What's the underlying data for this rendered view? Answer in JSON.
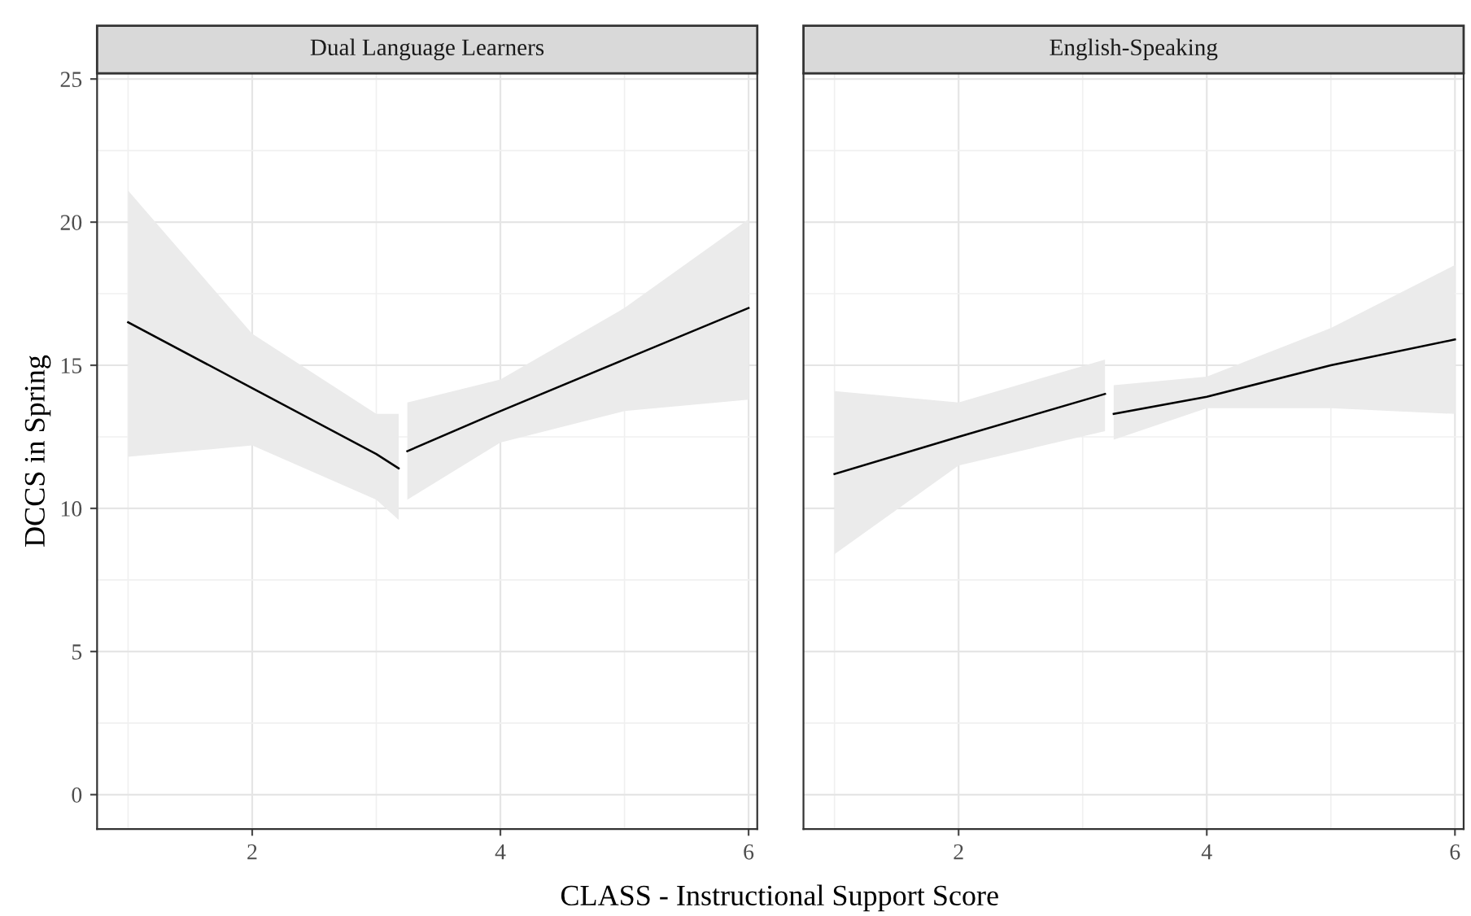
{
  "chart_data": [
    {
      "type": "line",
      "title": "Dual Language Learners",
      "ylabel": "DCCS in Spring",
      "xlabel": "CLASS - Instructional Support Score",
      "xlim": [
        0.75,
        6.07
      ],
      "xticks": [
        2,
        4,
        6
      ],
      "ylim": [
        -1.2,
        25.2
      ],
      "yticks": [
        0,
        5,
        10,
        15,
        20,
        25
      ],
      "grid": true,
      "series": [
        {
          "color": "#000000",
          "x": [
            1,
            2,
            3,
            3.18
          ],
          "values": [
            16.5,
            14.2,
            11.9,
            11.4
          ],
          "lower": [
            11.8,
            12.2,
            10.3,
            9.6
          ],
          "upper": [
            21.1,
            16.1,
            13.3,
            13.3
          ]
        },
        {
          "color": "#000000",
          "x": [
            3.25,
            4,
            5,
            6
          ],
          "values": [
            12.0,
            13.4,
            15.2,
            17.0
          ],
          "lower": [
            10.3,
            12.3,
            13.4,
            13.8
          ],
          "upper": [
            13.7,
            14.5,
            17.0,
            20.1
          ]
        }
      ]
    },
    {
      "type": "line",
      "title": "English-Speaking",
      "xlim": [
        0.75,
        6.07
      ],
      "xticks": [
        2,
        4,
        6
      ],
      "ylim": [
        -1.2,
        25.2
      ],
      "yticks": [
        0,
        5,
        10,
        15,
        20,
        25
      ],
      "grid": true,
      "tick_labels": "x",
      "series": [
        {
          "color": "#000000",
          "x": [
            1,
            2,
            3.18
          ],
          "values": [
            11.2,
            12.5,
            14.0
          ],
          "lower": [
            8.4,
            11.5,
            12.7
          ],
          "upper": [
            14.1,
            13.7,
            15.2
          ]
        },
        {
          "color": "#000000",
          "x": [
            3.25,
            4,
            5,
            6
          ],
          "values": [
            13.3,
            13.9,
            15.0,
            15.9
          ],
          "lower": [
            12.4,
            13.5,
            13.5,
            13.3
          ],
          "upper": [
            14.3,
            14.6,
            16.3,
            18.5
          ]
        }
      ]
    }
  ]
}
